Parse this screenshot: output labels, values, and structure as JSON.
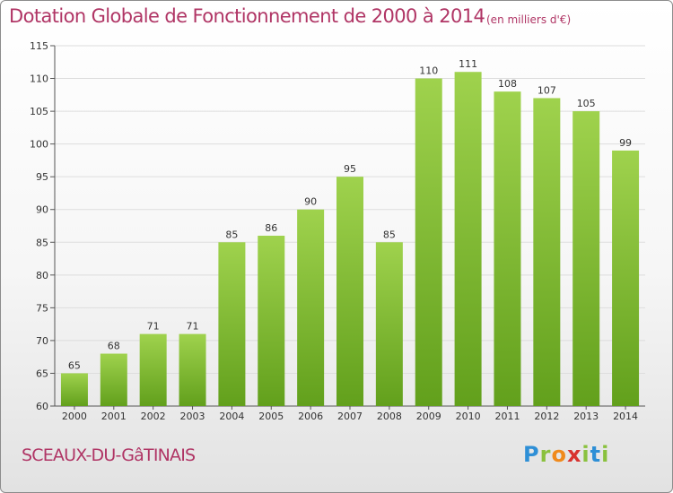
{
  "header": {
    "title": "Dotation Globale de Fonctionnement de 2000 à 2014",
    "subtitle": "(en milliers d'€)"
  },
  "footer": {
    "commune": "SCEAUX-DU-GâTINAIS",
    "logo_letters": [
      "P",
      "r",
      "o",
      "x",
      "i",
      "t",
      "i"
    ]
  },
  "colors": {
    "title": "#b03565",
    "bar_light": "#9fd24d",
    "bar_dark": "#62a01c",
    "grid": "#dddddd"
  },
  "chart_data": {
    "type": "bar",
    "title": "Dotation Globale de Fonctionnement de 2000 à 2014",
    "subtitle": "(en milliers d'€)",
    "xlabel": "",
    "ylabel": "",
    "categories": [
      "2000",
      "2001",
      "2002",
      "2003",
      "2004",
      "2005",
      "2006",
      "2007",
      "2008",
      "2009",
      "2010",
      "2011",
      "2012",
      "2013",
      "2014"
    ],
    "values": [
      65,
      68,
      71,
      71,
      85,
      86,
      90,
      95,
      85,
      110,
      111,
      108,
      107,
      105,
      99
    ],
    "ylim": [
      60,
      115
    ],
    "yticks": [
      60,
      65,
      70,
      75,
      80,
      85,
      90,
      95,
      100,
      105,
      110,
      115
    ],
    "grid": true,
    "legend": "none"
  }
}
